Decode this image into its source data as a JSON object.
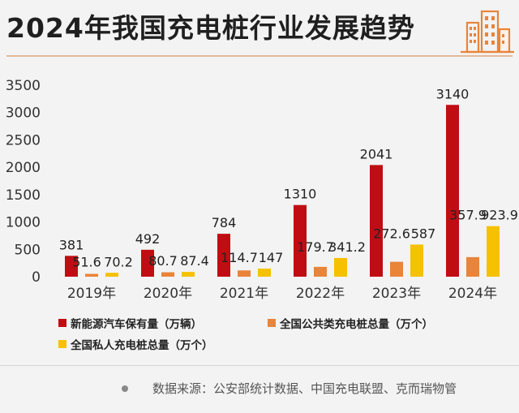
{
  "title": "2024年我国充电桩行业发展趋势",
  "source": "数据来源：公安部统计数据、中国充电联盟、克而瑞物管",
  "logo_icon": "building-icon",
  "colors": {
    "red": "#c00d13",
    "orange": "#e98439",
    "yellow": "#f5c100",
    "accent": "#e98439"
  },
  "chart_data": {
    "type": "bar",
    "categories": [
      "2019年",
      "2020年",
      "2021年",
      "2022年",
      "2023年",
      "2024年"
    ],
    "series": [
      {
        "name": "新能源汽车保有量（万辆）",
        "values": [
          381,
          492,
          784,
          1310,
          2041,
          3140
        ],
        "labels": [
          "381",
          "492",
          "784",
          "1310",
          "2041",
          "3140"
        ]
      },
      {
        "name": "全国公共类充电桩总量（万个）",
        "values": [
          51.6,
          80.7,
          114.7,
          179.7,
          272.6,
          357.9
        ],
        "labels": [
          "51.6",
          "80.7",
          "114.7",
          "179.7",
          "272.6",
          "357.9"
        ]
      },
      {
        "name": "全国私人充电桩总量（万个）",
        "values": [
          70.2,
          87.4,
          147,
          341.2,
          587,
          923.9
        ],
        "labels": [
          "70.2",
          "87.4",
          "147",
          "341.2",
          "587",
          "923.9"
        ]
      }
    ],
    "yticks": [
      0,
      500,
      1000,
      1500,
      2000,
      2500,
      3000,
      3500
    ],
    "ylim": [
      0,
      3500
    ],
    "grid": false,
    "legend_position": "bottom"
  }
}
